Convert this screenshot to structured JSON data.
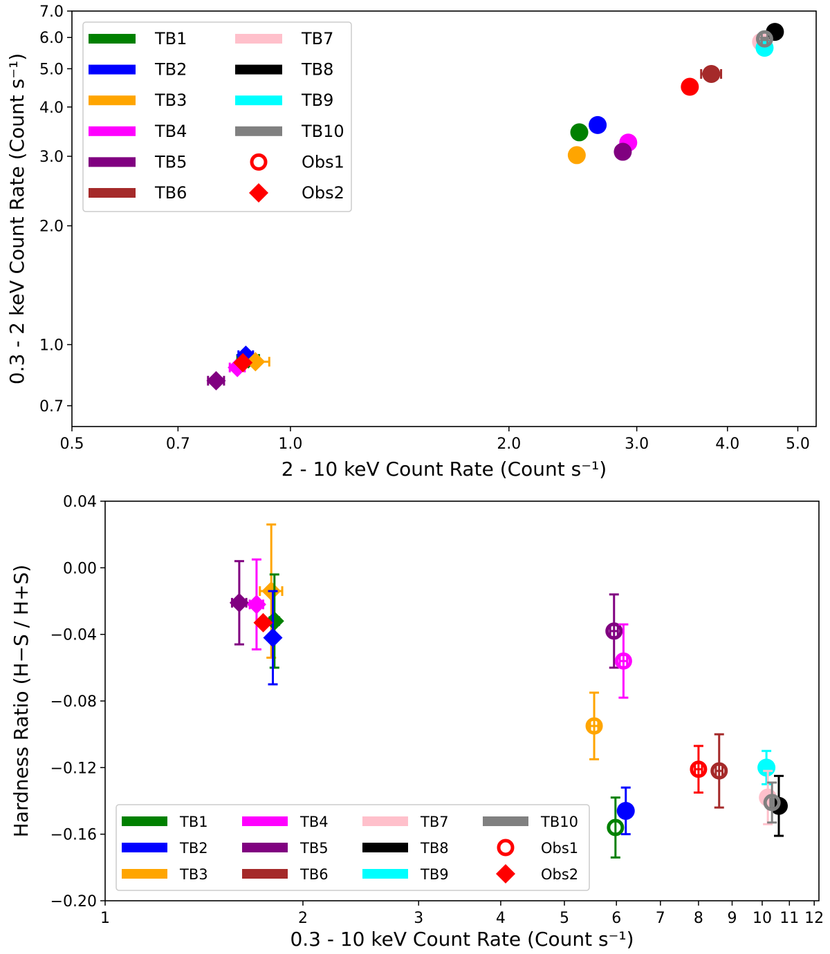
{
  "chart_data": [
    {
      "type": "scatter",
      "xscale": "log",
      "yscale": "log",
      "xlabel": "2 - 10 keV Count Rate (Count s⁻¹)",
      "ylabel": "0.3 - 2 keV Count Rate (Count s⁻¹)",
      "xlim": [
        0.5,
        5.3
      ],
      "ylim": [
        0.62,
        7.0
      ],
      "xticks": [
        0.5,
        0.7,
        1.0,
        2.0,
        3.0,
        4.0,
        5.0
      ],
      "xtick_labels": [
        "0.5",
        "0.7",
        "1.0",
        "2.0",
        "3.0",
        "4.0",
        "5.0"
      ],
      "yticks": [
        0.7,
        1.0,
        2.0,
        3.0,
        4.0,
        5.0,
        6.0,
        7.0
      ],
      "ytick_labels": [
        "0.7",
        "1.0",
        "2.0",
        "3.0",
        "4.0",
        "5.0",
        "6.0",
        "7.0"
      ],
      "legend": {
        "position": "upper-left",
        "entries": [
          {
            "label": "TB1",
            "color": "#008000",
            "kind": "bar"
          },
          {
            "label": "TB2",
            "color": "#0000ff",
            "kind": "bar"
          },
          {
            "label": "TB3",
            "color": "#ffa500",
            "kind": "bar"
          },
          {
            "label": "TB4",
            "color": "#ff00ff",
            "kind": "bar"
          },
          {
            "label": "TB5",
            "color": "#800080",
            "kind": "bar"
          },
          {
            "label": "TB6",
            "color": "#a52a2a",
            "kind": "bar"
          },
          {
            "label": "TB7",
            "color": "#ffc0cb",
            "kind": "bar"
          },
          {
            "label": "TB8",
            "color": "#000000",
            "kind": "bar"
          },
          {
            "label": "TB9",
            "color": "#00ffff",
            "kind": "bar"
          },
          {
            "label": "TB10",
            "color": "#808080",
            "kind": "bar"
          },
          {
            "label": "Obs1",
            "color": "#ff0000",
            "kind": "ring"
          },
          {
            "label": "Obs2",
            "color": "#ff0000",
            "kind": "diamond"
          }
        ]
      },
      "series": [
        {
          "name": "TB1 Obs1",
          "color": "#008000",
          "marker": "circle",
          "x": 2.5,
          "y": 3.45,
          "xerr": 0.03,
          "yerr": 0.04
        },
        {
          "name": "TB2 Obs1",
          "color": "#0000ff",
          "marker": "circle",
          "x": 2.65,
          "y": 3.6,
          "xerr": 0,
          "yerr": 0
        },
        {
          "name": "TB3 Obs1",
          "color": "#ffa500",
          "marker": "circle",
          "x": 2.48,
          "y": 3.02,
          "xerr": 0.02,
          "yerr": 0.03
        },
        {
          "name": "TB4 Obs1",
          "color": "#ff00ff",
          "marker": "circle",
          "x": 2.92,
          "y": 3.25,
          "xerr": 0.06,
          "yerr": 0.03
        },
        {
          "name": "TB5 Obs1",
          "color": "#800080",
          "marker": "circle",
          "x": 2.87,
          "y": 3.08,
          "xerr": 0.06,
          "yerr": 0.03
        },
        {
          "name": "TB6 Obs1",
          "color": "#a52a2a",
          "marker": "circle",
          "x": 3.8,
          "y": 4.85,
          "xerr": 0.12,
          "yerr": 0.05
        },
        {
          "name": "Obs1 (red)",
          "color": "#ff0000",
          "marker": "circle",
          "x": 3.55,
          "y": 4.5,
          "xerr": 0,
          "yerr": 0
        },
        {
          "name": "TB7 Obs1",
          "color": "#ffc0cb",
          "marker": "circle",
          "x": 4.45,
          "y": 5.85,
          "xerr": 0.08,
          "yerr": 0.05
        },
        {
          "name": "TB8 Obs1",
          "color": "#000000",
          "marker": "circle",
          "x": 4.65,
          "y": 6.2,
          "xerr": 0,
          "yerr": 0
        },
        {
          "name": "TB9 Obs1",
          "color": "#00ffff",
          "marker": "circle",
          "x": 4.5,
          "y": 5.65,
          "xerr": 0,
          "yerr": 0
        },
        {
          "name": "TB10 Obs1",
          "color": "#808080",
          "marker": "ring",
          "x": 4.5,
          "y": 5.95,
          "xerr": 0.04,
          "yerr": 0.04
        },
        {
          "name": "TB5 Obs2",
          "color": "#800080",
          "marker": "diamond",
          "x": 0.79,
          "y": 0.81,
          "xerr": 0.02,
          "yerr": 0.01
        },
        {
          "name": "TB4 Obs2",
          "color": "#ff00ff",
          "marker": "diamond",
          "x": 0.845,
          "y": 0.875,
          "xerr": 0.02,
          "yerr": 0.01
        },
        {
          "name": "TB1 Obs2",
          "color": "#008000",
          "marker": "diamond",
          "x": 0.875,
          "y": 0.92,
          "xerr": 0.03,
          "yerr": 0.01
        },
        {
          "name": "TB2 Obs2",
          "color": "#0000ff",
          "marker": "diamond",
          "x": 0.868,
          "y": 0.94,
          "xerr": 0.02,
          "yerr": 0.01
        },
        {
          "name": "TB3 Obs2",
          "color": "#ffa500",
          "marker": "diamond",
          "x": 0.895,
          "y": 0.905,
          "xerr": 0.04,
          "yerr": 0.01
        },
        {
          "name": "Obs2 (red)",
          "color": "#ff0000",
          "marker": "diamond",
          "x": 0.86,
          "y": 0.9,
          "xerr": 0.01,
          "yerr": 0.01
        }
      ]
    },
    {
      "type": "scatter",
      "xscale": "log",
      "yscale": "linear",
      "xlabel": "0.3 - 10 keV Count Rate (Count s⁻¹)",
      "ylabel": "Hardness Ratio (H−S / H+S)",
      "xlim": [
        1,
        12.2
      ],
      "ylim": [
        -0.2,
        0.04
      ],
      "xticks": [
        1,
        2,
        3,
        4,
        5,
        6,
        7,
        8,
        9,
        10,
        11,
        12
      ],
      "xtick_labels": [
        "1",
        "2",
        "3",
        "4",
        "5",
        "6",
        "7",
        "8",
        "9",
        "10",
        "11",
        "12"
      ],
      "yticks": [
        -0.2,
        -0.16,
        -0.12,
        -0.08,
        -0.04,
        0.0,
        0.04
      ],
      "ytick_labels": [
        "−0.20",
        "−0.16",
        "−0.12",
        "−0.08",
        "−0.04",
        "0.00",
        "0.04"
      ],
      "legend": {
        "position": "lower-left",
        "entries": [
          {
            "label": "TB1",
            "color": "#008000",
            "kind": "bar"
          },
          {
            "label": "TB2",
            "color": "#0000ff",
            "kind": "bar"
          },
          {
            "label": "TB3",
            "color": "#ffa500",
            "kind": "bar"
          },
          {
            "label": "TB4",
            "color": "#ff00ff",
            "kind": "bar"
          },
          {
            "label": "TB5",
            "color": "#800080",
            "kind": "bar"
          },
          {
            "label": "TB6",
            "color": "#a52a2a",
            "kind": "bar"
          },
          {
            "label": "TB7",
            "color": "#ffc0cb",
            "kind": "bar"
          },
          {
            "label": "TB8",
            "color": "#000000",
            "kind": "bar"
          },
          {
            "label": "TB9",
            "color": "#00ffff",
            "kind": "bar"
          },
          {
            "label": "TB10",
            "color": "#808080",
            "kind": "bar"
          },
          {
            "label": "Obs1",
            "color": "#ff0000",
            "kind": "ring"
          },
          {
            "label": "Obs2",
            "color": "#ff0000",
            "kind": "diamond"
          }
        ]
      },
      "series": [
        {
          "name": "TB5 Obs2",
          "color": "#800080",
          "marker": "diamond",
          "x": 1.6,
          "y": -0.021,
          "xerr": 0.04,
          "yerr": 0.025
        },
        {
          "name": "TB4 Obs2",
          "color": "#ff00ff",
          "marker": "diamond",
          "x": 1.7,
          "y": -0.022,
          "xerr": 0.04,
          "yerr": 0.027
        },
        {
          "name": "TB3 Obs2",
          "color": "#ffa500",
          "marker": "diamond",
          "x": 1.79,
          "y": -0.014,
          "xerr": 0.07,
          "yerr": 0.04
        },
        {
          "name": "TB1 Obs2",
          "color": "#008000",
          "marker": "diamond",
          "x": 1.81,
          "y": -0.032,
          "xerr": 0.03,
          "yerr": 0.028
        },
        {
          "name": "TB2 Obs2",
          "color": "#0000ff",
          "marker": "diamond",
          "x": 1.8,
          "y": -0.042,
          "xerr": 0.02,
          "yerr": 0.028
        },
        {
          "name": "Obs2 (red)",
          "color": "#ff0000",
          "marker": "diamond",
          "x": 1.74,
          "y": -0.033,
          "xerr": 0,
          "yerr": 0
        },
        {
          "name": "TB5 Obs1",
          "color": "#800080",
          "marker": "ring",
          "x": 5.95,
          "y": -0.038,
          "xerr": 0.08,
          "yerr": 0.022
        },
        {
          "name": "TB4 Obs1",
          "color": "#ff00ff",
          "marker": "ring",
          "x": 6.15,
          "y": -0.056,
          "xerr": 0.08,
          "yerr": 0.022
        },
        {
          "name": "TB3 Obs1",
          "color": "#ffa500",
          "marker": "ring",
          "x": 5.55,
          "y": -0.095,
          "xerr": 0.08,
          "yerr": 0.02
        },
        {
          "name": "TB1 Obs1",
          "color": "#008000",
          "marker": "ring",
          "x": 5.98,
          "y": -0.156,
          "xerr": 0,
          "yerr": 0.018
        },
        {
          "name": "TB2 Obs1",
          "color": "#0000ff",
          "marker": "circle",
          "x": 6.2,
          "y": -0.146,
          "xerr": 0,
          "yerr": 0.014
        },
        {
          "name": "Obs1 (red)",
          "color": "#ff0000",
          "marker": "ring",
          "x": 8.0,
          "y": -0.121,
          "xerr": 0.1,
          "yerr": 0.014
        },
        {
          "name": "TB6 Obs1",
          "color": "#a52a2a",
          "marker": "ring",
          "x": 8.6,
          "y": -0.122,
          "xerr": 0.1,
          "yerr": 0.022
        },
        {
          "name": "TB9 Obs1",
          "color": "#00ffff",
          "marker": "circle",
          "x": 10.15,
          "y": -0.12,
          "xerr": 0,
          "yerr": 0.01
        },
        {
          "name": "TB7 Obs1",
          "color": "#ffc0cb",
          "marker": "circle",
          "x": 10.2,
          "y": -0.138,
          "xerr": 0.06,
          "yerr": 0.016
        },
        {
          "name": "TB8 Obs1",
          "color": "#000000",
          "marker": "circle",
          "x": 10.6,
          "y": -0.143,
          "xerr": 0,
          "yerr": 0.018
        },
        {
          "name": "TB10 Obs1",
          "color": "#808080",
          "marker": "ring",
          "x": 10.35,
          "y": -0.141,
          "xerr": 0.06,
          "yerr": 0.012
        }
      ]
    }
  ]
}
